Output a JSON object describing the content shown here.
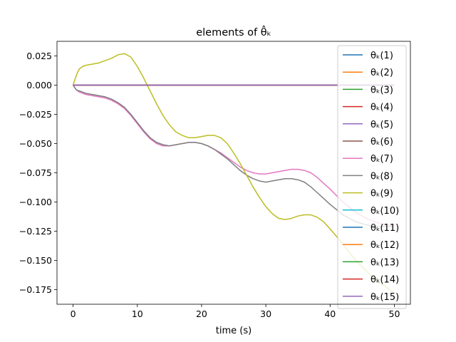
{
  "chart_data": {
    "type": "line",
    "title": "elements of θ̂ₖ",
    "xlabel": "time (s)",
    "ylabel": "",
    "xlim": [
      -2.5,
      52.5
    ],
    "ylim": [
      -0.1875,
      0.0375
    ],
    "x_ticks": [
      0,
      10,
      20,
      30,
      40,
      50
    ],
    "x_tick_labels": [
      "0",
      "10",
      "20",
      "30",
      "40",
      "50"
    ],
    "y_ticks": [
      0.025,
      0.0,
      -0.025,
      -0.05,
      -0.075,
      -0.1,
      -0.125,
      -0.15,
      -0.175
    ],
    "y_tick_labels": [
      "0.025",
      "0.000",
      "−0.025",
      "−0.050",
      "−0.075",
      "−0.100",
      "−0.125",
      "−0.150",
      "−0.175"
    ],
    "legend_position": "right",
    "series": [
      {
        "name": "θₖ(1)",
        "color": "#1f77b4",
        "x": [
          0,
          50
        ],
        "y": [
          0,
          0
        ]
      },
      {
        "name": "θₖ(2)",
        "color": "#ff7f0e",
        "x": [
          0,
          50
        ],
        "y": [
          0,
          0
        ]
      },
      {
        "name": "θₖ(3)",
        "color": "#2ca02c",
        "x": [
          0,
          50
        ],
        "y": [
          0,
          0
        ]
      },
      {
        "name": "θₖ(4)",
        "color": "#d62728",
        "x": [
          0,
          50
        ],
        "y": [
          0,
          0
        ]
      },
      {
        "name": "θₖ(5)",
        "color": "#9467bd",
        "x": [
          0,
          50
        ],
        "y": [
          0,
          0
        ]
      },
      {
        "name": "θₖ(6)",
        "color": "#8c564b",
        "x": [
          0,
          50
        ],
        "y": [
          0,
          0
        ]
      },
      {
        "name": "θₖ(7)",
        "color": "#e377c2",
        "x": [
          0,
          0.5,
          1,
          2,
          3,
          4,
          5,
          6,
          7,
          8,
          9,
          10,
          11,
          12,
          13,
          14,
          15,
          16,
          17,
          18,
          19,
          20,
          21,
          22,
          23,
          24,
          25,
          26,
          27,
          28,
          29,
          30,
          31,
          32,
          33,
          34,
          35,
          36,
          37,
          38,
          39,
          40,
          42,
          44,
          46,
          48,
          50
        ],
        "y": [
          0,
          -0.004,
          -0.006,
          -0.008,
          -0.009,
          -0.01,
          -0.011,
          -0.013,
          -0.016,
          -0.02,
          -0.026,
          -0.033,
          -0.04,
          -0.046,
          -0.05,
          -0.052,
          -0.052,
          -0.051,
          -0.05,
          -0.049,
          -0.049,
          -0.05,
          -0.052,
          -0.055,
          -0.058,
          -0.062,
          -0.066,
          -0.07,
          -0.073,
          -0.075,
          -0.076,
          -0.076,
          -0.075,
          -0.074,
          -0.073,
          -0.072,
          -0.072,
          -0.073,
          -0.075,
          -0.079,
          -0.084,
          -0.089,
          -0.1,
          -0.109,
          -0.115,
          -0.119,
          -0.12
        ]
      },
      {
        "name": "θₖ(8)",
        "color": "#7f7f7f",
        "x": [
          0,
          0.5,
          1,
          2,
          3,
          4,
          5,
          6,
          7,
          8,
          9,
          10,
          11,
          12,
          13,
          14,
          15,
          16,
          17,
          18,
          19,
          20,
          21,
          22,
          23,
          24,
          25,
          26,
          27,
          28,
          29,
          30,
          31,
          32,
          33,
          34,
          35,
          36,
          37,
          38,
          39,
          40,
          42,
          44,
          46,
          48,
          50
        ],
        "y": [
          0,
          -0.004,
          -0.005,
          -0.007,
          -0.008,
          -0.009,
          -0.01,
          -0.012,
          -0.015,
          -0.019,
          -0.025,
          -0.032,
          -0.039,
          -0.045,
          -0.049,
          -0.051,
          -0.052,
          -0.051,
          -0.05,
          -0.049,
          -0.049,
          -0.05,
          -0.052,
          -0.055,
          -0.059,
          -0.063,
          -0.068,
          -0.073,
          -0.077,
          -0.08,
          -0.082,
          -0.083,
          -0.082,
          -0.081,
          -0.08,
          -0.08,
          -0.081,
          -0.083,
          -0.087,
          -0.092,
          -0.097,
          -0.102,
          -0.111,
          -0.117,
          -0.12,
          -0.121,
          -0.121
        ]
      },
      {
        "name": "θₖ(9)",
        "color": "#bcbd22",
        "x": [
          0,
          0.3,
          0.7,
          1,
          1.5,
          2,
          3,
          4,
          5,
          6,
          7,
          8,
          9,
          10,
          11,
          12,
          13,
          14,
          15,
          16,
          17,
          18,
          19,
          20,
          21,
          22,
          23,
          24,
          25,
          26,
          27,
          28,
          29,
          30,
          31,
          32,
          33,
          34,
          35,
          36,
          37,
          38,
          39,
          40,
          42,
          44,
          46,
          48,
          50
        ],
        "y": [
          0,
          0.005,
          0.011,
          0.014,
          0.016,
          0.017,
          0.018,
          0.019,
          0.021,
          0.023,
          0.026,
          0.027,
          0.024,
          0.016,
          0.006,
          -0.005,
          -0.016,
          -0.026,
          -0.034,
          -0.04,
          -0.043,
          -0.045,
          -0.045,
          -0.044,
          -0.043,
          -0.043,
          -0.045,
          -0.05,
          -0.058,
          -0.067,
          -0.077,
          -0.087,
          -0.096,
          -0.104,
          -0.11,
          -0.114,
          -0.115,
          -0.114,
          -0.112,
          -0.111,
          -0.111,
          -0.113,
          -0.117,
          -0.123,
          -0.136,
          -0.15,
          -0.161,
          -0.17,
          -0.178
        ]
      },
      {
        "name": "θₖ(10)",
        "color": "#17becf",
        "x": [
          0,
          50
        ],
        "y": [
          0,
          0
        ]
      },
      {
        "name": "θₖ(11)",
        "color": "#1f77b4",
        "x": [
          0,
          50
        ],
        "y": [
          0,
          0
        ]
      },
      {
        "name": "θₖ(12)",
        "color": "#ff7f0e",
        "x": [
          0,
          50
        ],
        "y": [
          0,
          0
        ]
      },
      {
        "name": "θₖ(13)",
        "color": "#2ca02c",
        "x": [
          0,
          50
        ],
        "y": [
          0,
          0
        ]
      },
      {
        "name": "θₖ(14)",
        "color": "#d62728",
        "x": [
          0,
          50
        ],
        "y": [
          0,
          0
        ]
      },
      {
        "name": "θₖ(15)",
        "color": "#9467bd",
        "x": [
          0,
          50
        ],
        "y": [
          0,
          0
        ]
      }
    ]
  }
}
